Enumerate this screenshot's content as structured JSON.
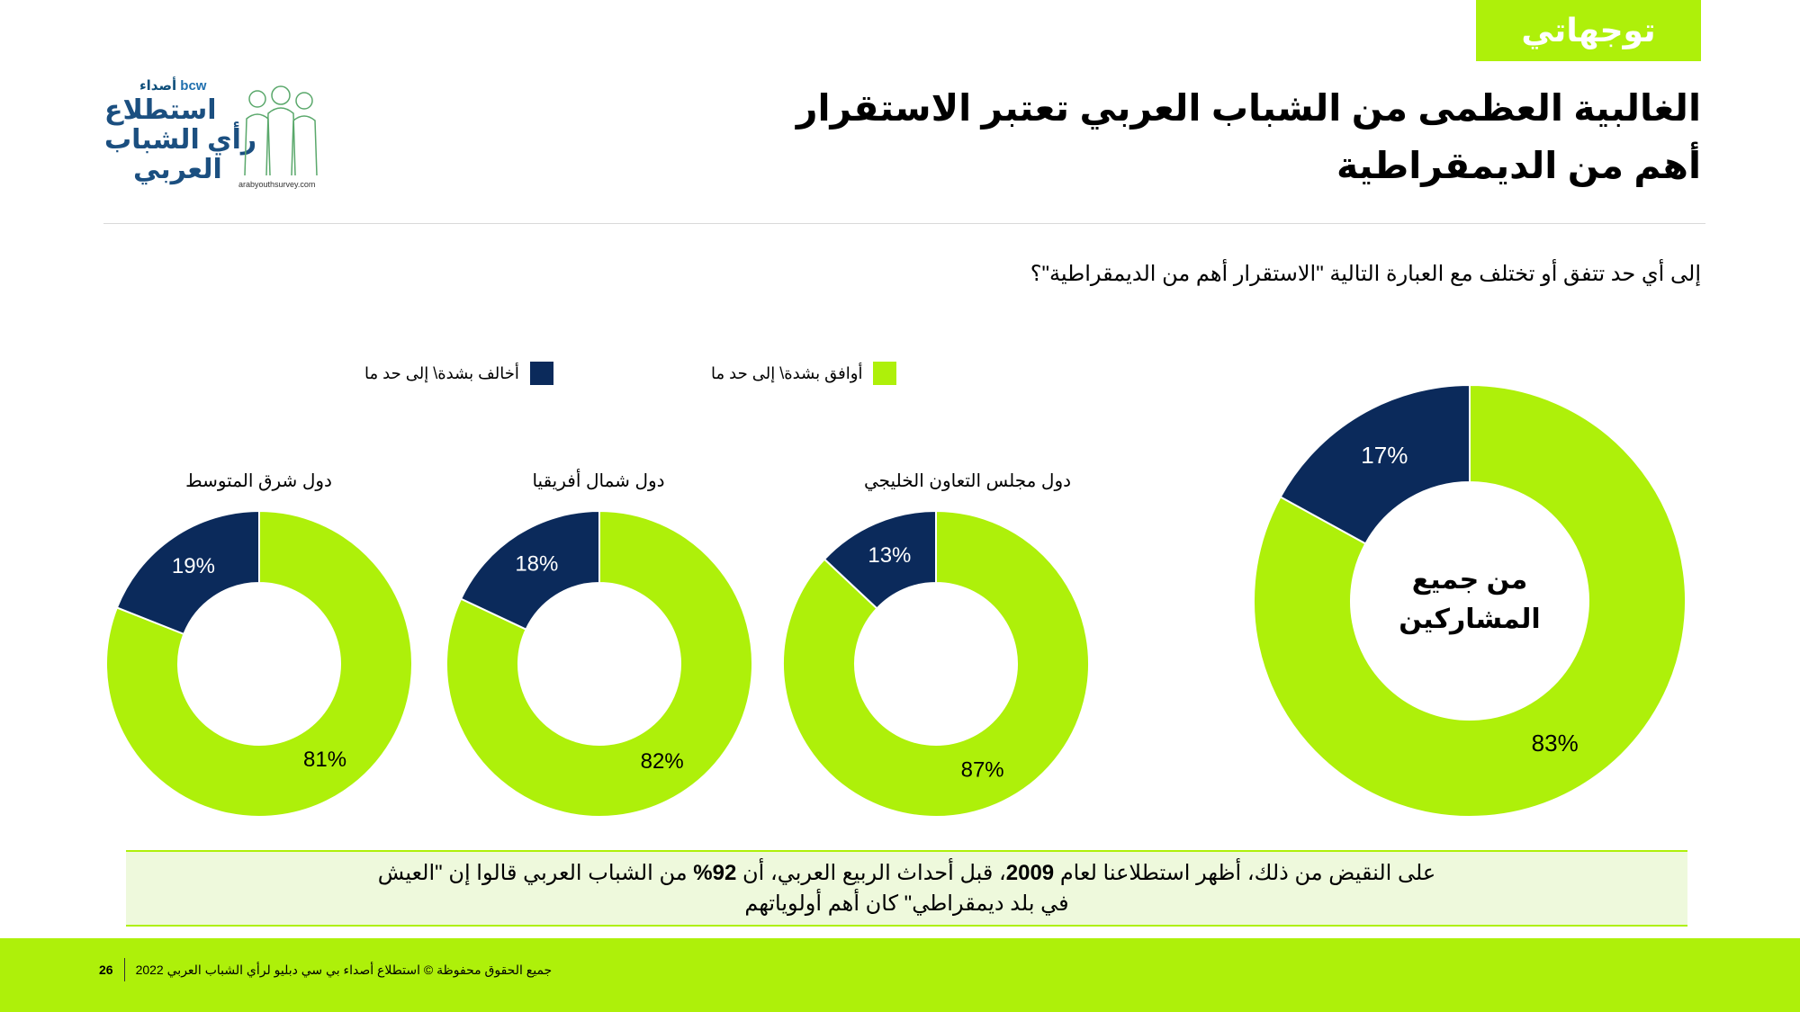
{
  "tag": "توجهاتي",
  "logo": {
    "brand": "bcw",
    "brand_arabic": "أصداء",
    "line1": "استطلاع",
    "line2": "رأي الشباب",
    "line3": "العربي",
    "url": "arabyouthsurvey.com"
  },
  "title": "الغالبية العظمى من الشباب العربي تعتبر الاستقرار أهم من الديمقراطية",
  "question": "إلى أي حد تتفق أو تختلف مع العبارة التالية \"الاستقرار أهم من الديمقراطية\"؟",
  "legend": {
    "agree": "أوافق بشدة\\ إلى حد ما",
    "disagree": "أخالف بشدة\\ إلى حد ما"
  },
  "colors": {
    "agree": "#aef00a",
    "disagree": "#0b2a5b",
    "accent": "#aef00a"
  },
  "chart_data": {
    "type": "donut",
    "title": "",
    "categories": [
      "أوافق بشدة\\ إلى حد ما",
      "أخالف بشدة\\ إلى حد ما"
    ],
    "series": [
      {
        "name": "من جميع المشاركين",
        "values": [
          83,
          17
        ],
        "labels": [
          "83%",
          "17%"
        ]
      },
      {
        "name": "دول مجلس التعاون الخليجي",
        "values": [
          87,
          13
        ],
        "labels": [
          "87%",
          "13%"
        ]
      },
      {
        "name": "دول شمال أفريقيا",
        "values": [
          82,
          18
        ],
        "labels": [
          "82%",
          "18%"
        ]
      },
      {
        "name": "دول شرق المتوسط",
        "values": [
          81,
          19
        ],
        "labels": [
          "81%",
          "19%"
        ]
      }
    ]
  },
  "center_label": {
    "line1": "من جميع",
    "line2": "المشاركين"
  },
  "regions": {
    "gcc": "دول مجلس التعاون الخليجي",
    "north_africa": "دول شمال أفريقيا",
    "levant": "دول شرق المتوسط"
  },
  "note": {
    "part1": "على النقيض من ذلك، أظهر استطلاعنا لعام ",
    "year": "2009",
    "part2": "، قبل أحداث الربيع العربي، أن ",
    "pct": "92%",
    "part3": " من الشباب العربي قالوا إن \"العيش في بلد ديمقراطي\" كان أهم أولوياتهم"
  },
  "footer": {
    "page": "26",
    "copyright": "جميع الحقوق محفوظة © استطلاع أصداء بي سي دبليو لرأي الشباب العربي 2022"
  }
}
